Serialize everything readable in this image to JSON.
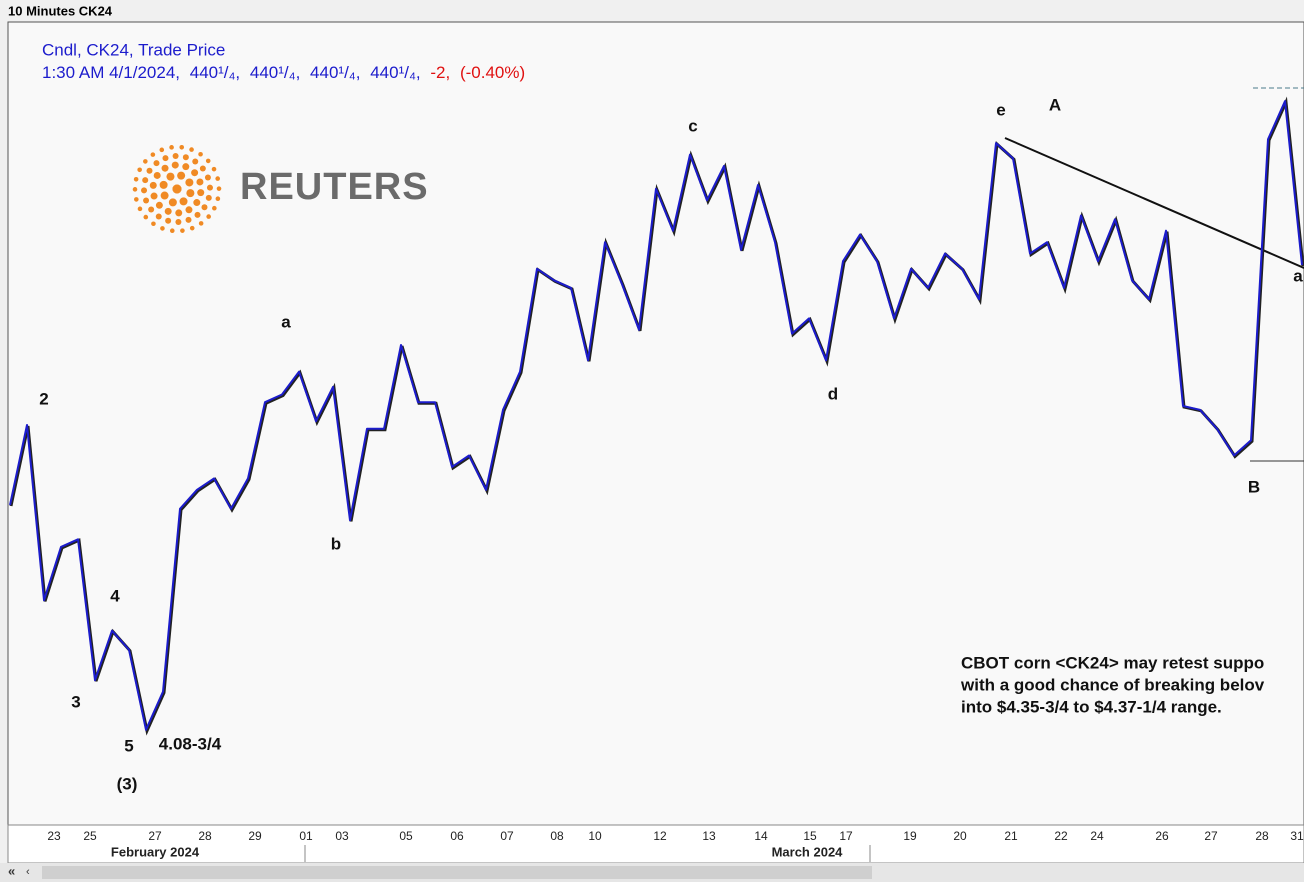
{
  "window_title": "10 Minutes CK24",
  "legend": {
    "series_name": "Cndl, CK24, Trade Price",
    "time": "1:30 AM 4/1/2024,",
    "ohlc": [
      "440¹/₄,",
      "440¹/₄,",
      "440¹/₄,",
      "440¹/₄,"
    ],
    "change": "-2,",
    "change_pct": "(-0.40%)"
  },
  "logo": "REUTERS",
  "chart_data": {
    "type": "line",
    "series": [
      {
        "name": "CK24",
        "color": "#1c1ccc",
        "values": [
          424.5,
          429.75,
          418.25,
          421.75,
          422.25,
          413,
          416.25,
          415,
          409.75,
          412.25,
          424.25,
          425.5,
          426.25,
          424.25,
          426.25,
          431.25,
          431.75,
          433.25,
          430,
          432.25,
          423.5,
          429.5,
          429.5,
          435,
          431.25,
          431.25,
          427,
          427.75,
          425.5,
          430.75,
          433.25,
          440,
          439.25,
          438.75,
          434,
          441.75,
          439,
          436,
          445.25,
          442.5,
          447.5,
          444.5,
          446.75,
          441.25,
          445.5,
          441.75,
          435.75,
          436.75,
          434,
          440.5,
          442.25,
          440.5,
          436.75,
          440,
          438.75,
          441,
          440,
          438,
          448.25,
          447.25,
          441,
          441.75,
          438.75,
          443.5,
          440.5,
          443.25,
          439.25,
          438,
          442.5,
          431,
          430.75,
          429.5,
          427.75,
          428.75,
          448.5,
          451,
          440.25
        ]
      }
    ],
    "ylim": [
      403.5,
      456.2
    ],
    "xtick_labels": [
      "23",
      "25",
      "27",
      "28",
      "29",
      "01",
      "03",
      "05",
      "06",
      "07",
      "08",
      "10",
      "12",
      "13",
      "14",
      "15",
      "17",
      "19",
      "20",
      "21",
      "22",
      "24",
      "26",
      "27",
      "28",
      "31"
    ],
    "months": [
      "February 2024",
      "March 2024"
    ],
    "annotations": [
      "2",
      "3",
      "4",
      "5",
      "4.08-3/4",
      "(3)",
      "a",
      "b",
      "c",
      "d",
      "e",
      "A",
      "B",
      "a"
    ],
    "comment": [
      "CBOT corn <CK24> may retest suppo",
      "with a good chance of breaking belov",
      " into $4.35-3/4 to $4.37-1/4 range."
    ]
  }
}
